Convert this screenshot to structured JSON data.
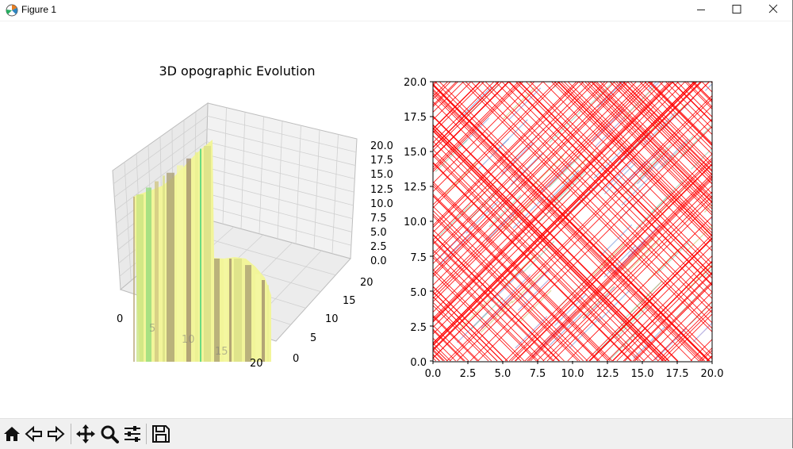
{
  "window": {
    "title": "Figure 1"
  },
  "icons": {
    "app": "matplotlib-icon",
    "minimize": "minimize-icon",
    "maximize": "maximize-icon",
    "close": "close-icon",
    "home": "home-icon",
    "back": "back-arrow-icon",
    "forward": "forward-arrow-icon",
    "pan": "move-icon",
    "zoom": "search-icon",
    "configure": "sliders-icon",
    "save": "save-icon"
  },
  "colors": {
    "surface_yellow": "#f2f59a",
    "surface_green": "#3fd17a",
    "line_red": "#ff0000",
    "toolbar_bg": "#f0f0f0"
  },
  "chart_data": [
    {
      "type": "surface",
      "title": "3D opographic Evolution",
      "xlabel": "",
      "ylabel": "",
      "zlabel": "",
      "x_ticks": [
        "0",
        "5",
        "10",
        "15",
        "20"
      ],
      "y_ticks": [
        "0",
        "5",
        "10",
        "15",
        "20"
      ],
      "z_ticks": [
        "0.0",
        "2.5",
        "5.0",
        "7.5",
        "10.0",
        "12.5",
        "15.0",
        "17.5",
        "20.0"
      ],
      "xlim": [
        0,
        20
      ],
      "ylim": [
        0,
        20
      ],
      "zlim": [
        0,
        20
      ],
      "grid": true
    },
    {
      "type": "line",
      "title": "",
      "xlabel": "",
      "ylabel": "",
      "x_ticks": [
        "0.0",
        "2.5",
        "5.0",
        "7.5",
        "10.0",
        "12.5",
        "15.0",
        "17.5",
        "20.0"
      ],
      "y_ticks": [
        "0.0",
        "2.5",
        "5.0",
        "7.5",
        "10.0",
        "12.5",
        "15.0",
        "17.5",
        "20.0"
      ],
      "xlim": [
        0,
        20
      ],
      "ylim": [
        0,
        20
      ],
      "grid": false
    }
  ]
}
